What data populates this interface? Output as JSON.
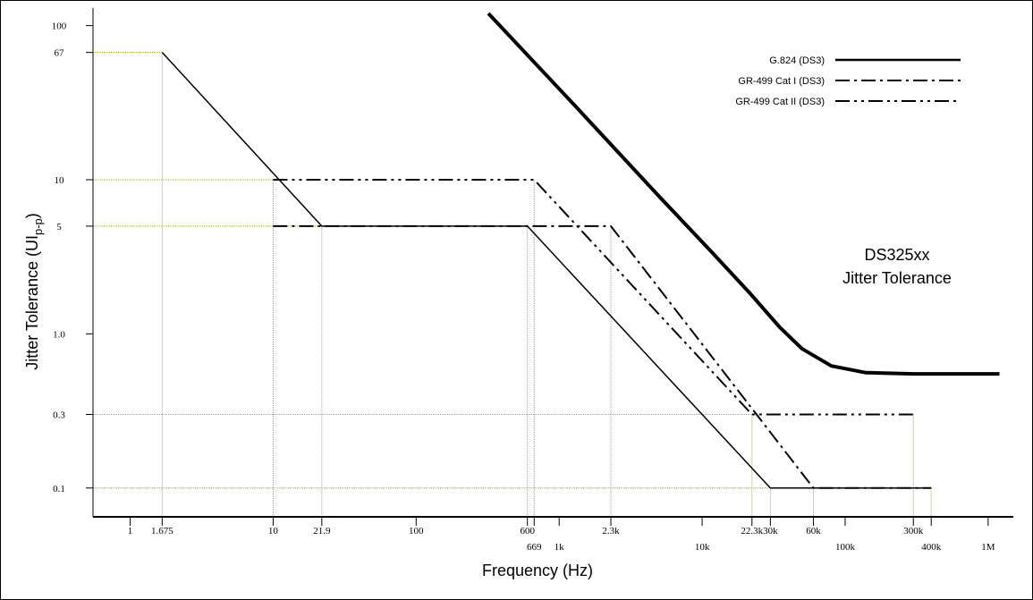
{
  "chart_data": {
    "type": "line",
    "log_scale": {
      "x": true,
      "y": true
    },
    "xlabel": "Frequency (Hz)",
    "ylabel_main": "Jitter Tolerance (UI",
    "ylabel_sub": "p-p",
    "ylabel_close": ")",
    "annotation": [
      "DS325xx",
      "Jitter Tolerance"
    ],
    "xlim": [
      0.55,
      1500000
    ],
    "ylim": [
      0.065,
      130
    ],
    "colors": {
      "axis": "#000000",
      "guide": "#a6a640",
      "series": "#000000"
    },
    "x_ticks": [
      {
        "value": 1,
        "label": "1",
        "row": "top"
      },
      {
        "value": 1.675,
        "label": "1.675",
        "row": "top"
      },
      {
        "value": 10,
        "label": "10",
        "row": "top"
      },
      {
        "value": 21.9,
        "label": "21.9",
        "row": "top"
      },
      {
        "value": 100,
        "label": "100",
        "row": "top"
      },
      {
        "value": 600,
        "label": "600",
        "row": "top"
      },
      {
        "value": 669,
        "label": "669",
        "row": "bottom"
      },
      {
        "value": 1000,
        "label": "1k",
        "row": "bottom"
      },
      {
        "value": 2300,
        "label": "2.3k",
        "row": "top"
      },
      {
        "value": 10000,
        "label": "10k",
        "row": "bottom"
      },
      {
        "value": 22300,
        "label": "22.3k",
        "row": "top"
      },
      {
        "value": 30000,
        "label": "30k",
        "row": "top"
      },
      {
        "value": 60000,
        "label": "60k",
        "row": "top"
      },
      {
        "value": 100000,
        "label": "100k",
        "row": "bottom"
      },
      {
        "value": 300000,
        "label": "300k",
        "row": "top"
      },
      {
        "value": 400000,
        "label": "400k",
        "row": "bottom"
      },
      {
        "value": 1000000,
        "label": "1M",
        "row": "bottom"
      }
    ],
    "y_ticks": [
      {
        "value": 100,
        "label": "100"
      },
      {
        "value": 67,
        "label": "67"
      },
      {
        "value": 10,
        "label": "10"
      },
      {
        "value": 5,
        "label": "5"
      },
      {
        "value": 1,
        "label": "1.0"
      },
      {
        "value": 0.3,
        "label": "0.3"
      },
      {
        "value": 0.1,
        "label": "0.1"
      }
    ],
    "guide_lines": [
      {
        "x": 1.675,
        "y": 67
      },
      {
        "x": 10,
        "y": 10
      },
      {
        "x": 21.9,
        "y": 5
      },
      {
        "x": 600,
        "y": 5
      },
      {
        "x": 669,
        "y": 10
      },
      {
        "x": 2300,
        "y": 5
      },
      {
        "x": 22300,
        "y": 0.3
      },
      {
        "x": 30000,
        "y": 0.1
      },
      {
        "x": 60000,
        "y": 0.1
      },
      {
        "x": 300000,
        "y": 0.3
      },
      {
        "x": 400000,
        "y": 0.1
      }
    ],
    "series": [
      {
        "name": "G.824 (DS3)",
        "style": "solid-thick",
        "points": [
          [
            320,
            120
          ],
          [
            1300,
            30
          ],
          [
            5000,
            7.8
          ],
          [
            12000,
            3.3
          ],
          [
            22000,
            1.8
          ],
          [
            35000,
            1.1
          ],
          [
            50000,
            0.8
          ],
          [
            80000,
            0.62
          ],
          [
            140000,
            0.56
          ],
          [
            300000,
            0.55
          ],
          [
            1200000,
            0.55
          ]
        ]
      },
      {
        "name": "GR-499 Cat I (DS3)",
        "style": "dash-dot",
        "points": [
          [
            10,
            5
          ],
          [
            2300,
            5
          ],
          [
            60000,
            0.1
          ],
          [
            400000,
            0.1
          ]
        ]
      },
      {
        "name": "GR-499 Cat II (DS3)",
        "style": "dash-dot-dot",
        "points": [
          [
            10,
            10
          ],
          [
            669,
            10
          ],
          [
            22300,
            0.3
          ],
          [
            300000,
            0.3
          ]
        ]
      },
      {
        "name": "",
        "style": "solid-thin",
        "points": [
          [
            1.675,
            67
          ],
          [
            21.9,
            5
          ],
          [
            600,
            5
          ],
          [
            30000,
            0.1
          ],
          [
            400000,
            0.1
          ]
        ]
      }
    ]
  }
}
